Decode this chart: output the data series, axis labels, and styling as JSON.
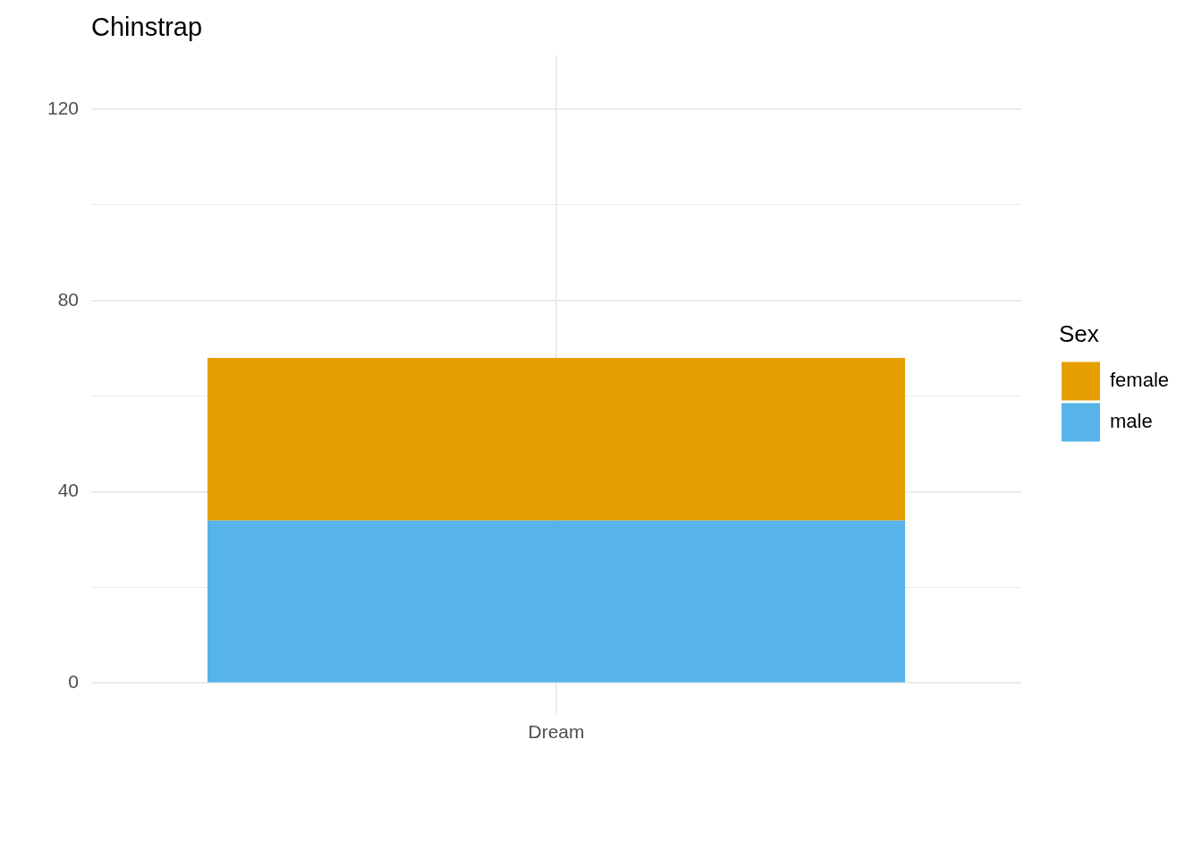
{
  "chart_data": {
    "type": "bar",
    "title": "Chinstrap",
    "legend_title": "Sex",
    "categories": [
      "Dream"
    ],
    "stacked": true,
    "series": [
      {
        "name": "male",
        "color": "#56b4e9",
        "values": [
          34
        ]
      },
      {
        "name": "female",
        "color": "#e69f00",
        "values": [
          34
        ]
      }
    ],
    "ylim": [
      -6.25,
      131.25
    ],
    "yticks": [
      0,
      {
        "value": 20,
        "label": null
      },
      40,
      {
        "value": 60,
        "label": null
      },
      80,
      {
        "value": 100,
        "label": null
      },
      120
    ],
    "grid": true,
    "legend": "right"
  }
}
